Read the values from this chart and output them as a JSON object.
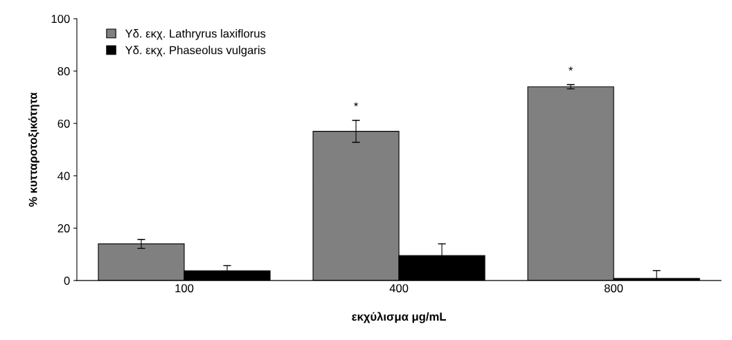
{
  "chart_data": {
    "type": "bar",
    "xlabel": "εκχύλισμα μg/mL",
    "ylabel": "% κυτταροτοξικότητα",
    "categories": [
      "100",
      "400",
      "800"
    ],
    "series": [
      {
        "name": "Υδ. εκχ. Lathryrus laxiflorus",
        "color": "#808080",
        "values": [
          14,
          57,
          74
        ],
        "errors": [
          1.7,
          4.2,
          0.8
        ]
      },
      {
        "name": "Υδ. εκχ. Phaseolus vulgaris",
        "color": "#000000",
        "values": [
          3.7,
          9.5,
          0.8
        ],
        "errors": [
          2,
          4.5,
          3
        ]
      }
    ],
    "ylim": [
      0,
      100
    ],
    "yticks": [
      0,
      20,
      40,
      60,
      80,
      100
    ],
    "grid": false,
    "legend": "top left",
    "annotations": [
      "*",
      "*"
    ]
  }
}
